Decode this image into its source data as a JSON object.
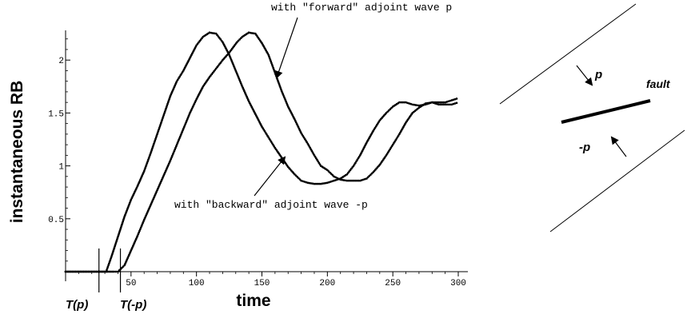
{
  "chart_data": {
    "type": "line",
    "title": "",
    "xlabel": "time",
    "ylabel": "instantaneous RB",
    "xlim": [
      0,
      300
    ],
    "ylim": [
      0,
      2.3
    ],
    "x_ticks": [
      50,
      100,
      150,
      200,
      250,
      300
    ],
    "y_ticks": [
      0.5,
      1,
      1.5,
      2
    ],
    "grid": false,
    "series": [
      {
        "name": "with \"forward\" adjoint wave p",
        "x": [
          0,
          20,
          31,
          37,
          40,
          45,
          50,
          55,
          60,
          65,
          70,
          75,
          80,
          85,
          90,
          95,
          100,
          105,
          110,
          115,
          120,
          125,
          128,
          131,
          135,
          140,
          145,
          150,
          155,
          160,
          165,
          170,
          175,
          180,
          185,
          190,
          195,
          200,
          205,
          210,
          215,
          220,
          225,
          230,
          235,
          240,
          245,
          250,
          255,
          260,
          265,
          270,
          275,
          280,
          285,
          290,
          295,
          300
        ],
        "y": [
          0,
          0,
          0,
          0,
          0,
          0.06,
          0.2,
          0.34,
          0.49,
          0.63,
          0.77,
          0.91,
          1.05,
          1.2,
          1.35,
          1.5,
          1.63,
          1.75,
          1.84,
          1.92,
          2.0,
          2.07,
          2.12,
          2.17,
          2.22,
          2.26,
          2.25,
          2.16,
          2.05,
          1.88,
          1.71,
          1.56,
          1.44,
          1.31,
          1.21,
          1.1,
          1.0,
          0.96,
          0.9,
          0.87,
          0.86,
          0.86,
          0.86,
          0.88,
          0.94,
          1.01,
          1.1,
          1.2,
          1.3,
          1.41,
          1.5,
          1.55,
          1.59,
          1.6,
          1.58,
          1.58,
          1.58,
          1.6
        ]
      },
      {
        "name": "with \"backward\" adjoint wave -p",
        "x": [
          0,
          20,
          31,
          35,
          40,
          45,
          50,
          55,
          60,
          65,
          70,
          75,
          80,
          85,
          90,
          95,
          100,
          105,
          110,
          115,
          120,
          125,
          130,
          135,
          140,
          145,
          150,
          155,
          160,
          165,
          170,
          175,
          180,
          185,
          190,
          195,
          200,
          205,
          210,
          215,
          220,
          225,
          230,
          235,
          240,
          245,
          250,
          255,
          260,
          265,
          270,
          275,
          280,
          285,
          290,
          295,
          300
        ],
        "y": [
          0,
          0,
          0,
          0.14,
          0.33,
          0.52,
          0.68,
          0.81,
          0.95,
          1.12,
          1.3,
          1.48,
          1.66,
          1.8,
          1.9,
          2.02,
          2.14,
          2.22,
          2.26,
          2.25,
          2.17,
          2.05,
          1.9,
          1.75,
          1.61,
          1.49,
          1.37,
          1.27,
          1.17,
          1.08,
          0.99,
          0.92,
          0.86,
          0.84,
          0.83,
          0.83,
          0.84,
          0.86,
          0.88,
          0.92,
          1.0,
          1.1,
          1.22,
          1.33,
          1.43,
          1.5,
          1.56,
          1.6,
          1.6,
          1.58,
          1.57,
          1.58,
          1.6,
          1.6,
          1.6,
          1.62,
          1.64
        ]
      }
    ],
    "markers": [
      {
        "label": "T(p)",
        "x": 31
      },
      {
        "label": "T(-p)",
        "x": 37
      }
    ],
    "annotations": [
      {
        "text": "with \"forward\" adjoint wave p",
        "points_to_x": 160,
        "points_to_y": 1.87
      },
      {
        "text": "with \"backward\" adjoint wave -p",
        "points_to_x": 175,
        "points_to_y": 1.07
      }
    ]
  },
  "diagram": {
    "p_label": "p",
    "minus_p_label": "-p",
    "fault_label": "fault"
  }
}
